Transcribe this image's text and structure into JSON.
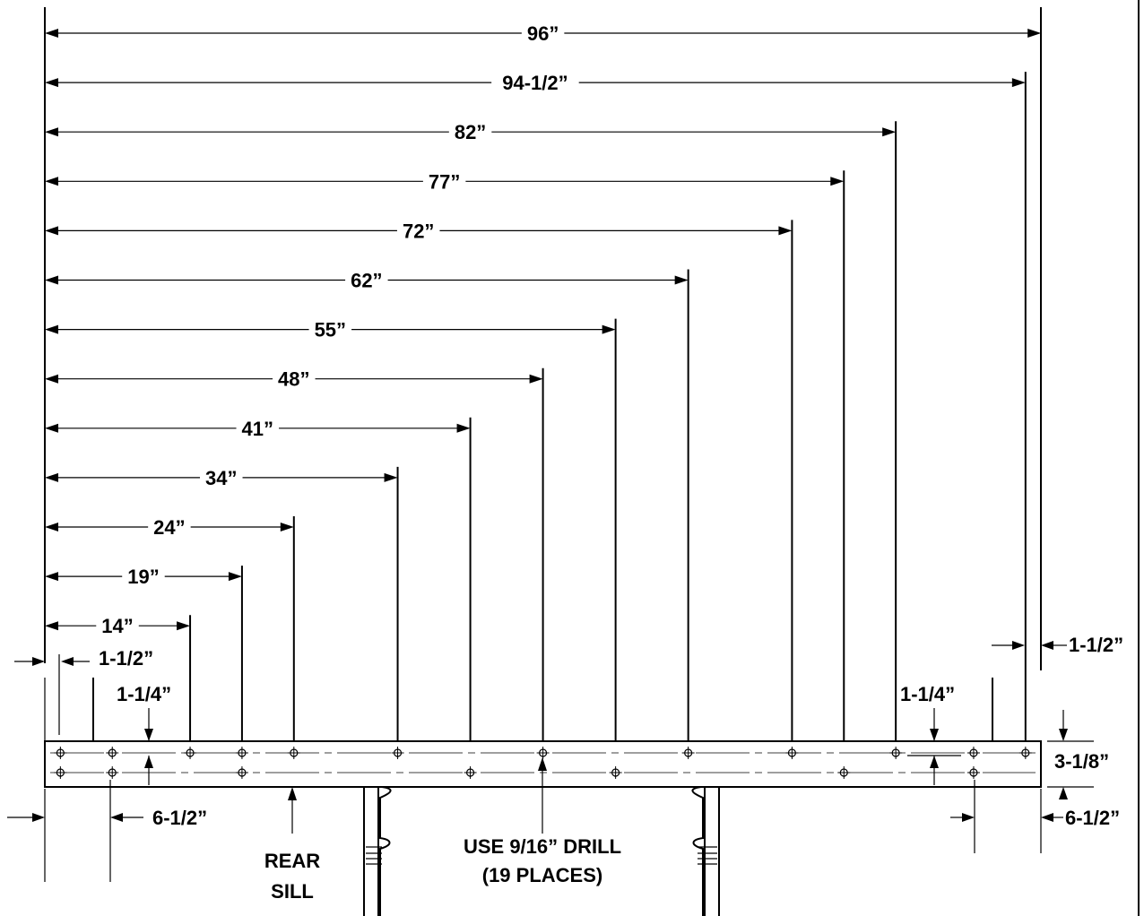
{
  "dimensions": [
    {
      "label": "96”",
      "value": 96
    },
    {
      "label": "94-1/2”",
      "value": 94.5
    },
    {
      "label": "82”",
      "value": 82
    },
    {
      "label": "77”",
      "value": 77
    },
    {
      "label": "72”",
      "value": 72
    },
    {
      "label": "62”",
      "value": 62
    },
    {
      "label": "55”",
      "value": 55
    },
    {
      "label": "48”",
      "value": 48
    },
    {
      "label": "41”",
      "value": 41
    },
    {
      "label": "34”",
      "value": 34
    },
    {
      "label": "24”",
      "value": 24
    },
    {
      "label": "19”",
      "value": 19
    },
    {
      "label": "14”",
      "value": 14
    }
  ],
  "callouts": {
    "left_edge_offset": "1-1/2”",
    "right_edge_offset": "1-1/2”",
    "left_hole_spacing": "1-1/4”",
    "right_hole_spacing": "1-1/4”",
    "left_bottom_offset": "6-1/2”",
    "right_bottom_offset": "6-1/2”",
    "sill_height": "3-1/8”",
    "rear_sill_line1": "REAR",
    "rear_sill_line2": "SILL",
    "drill_line1": "USE 9/16” DRILL",
    "drill_line2": "(19 PLACES)"
  },
  "holes": {
    "top_row": [
      1.5,
      6.5,
      14,
      19,
      24,
      34,
      48,
      62,
      72,
      82,
      89.5,
      94.5
    ],
    "bottom_row": [
      1.5,
      6.5,
      19,
      41,
      55,
      77,
      89.5
    ]
  }
}
